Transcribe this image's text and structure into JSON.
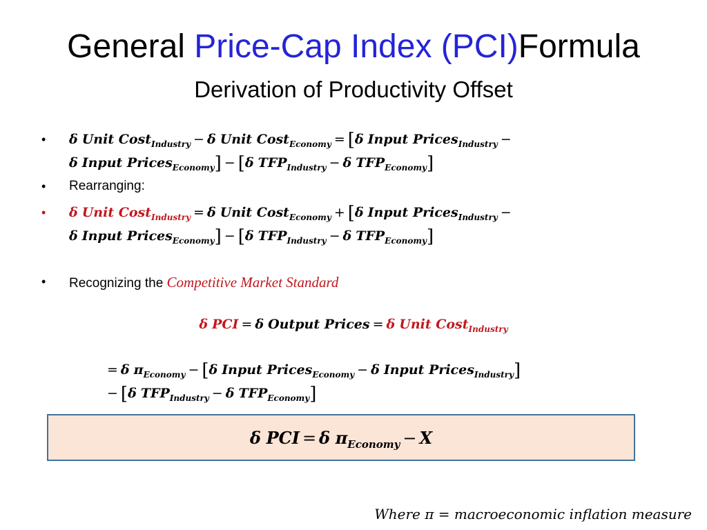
{
  "title": {
    "part1": "General ",
    "highlight": "Price-Cap Index (PCI)",
    "part2": "Formula"
  },
  "subtitle": "Derivation of Productivity Offset",
  "symbols": {
    "bullet": "•",
    "delta": "δ",
    "pi": "π",
    "minus": "−",
    "plus": "+",
    "equals": "=",
    "lbracket": "[",
    "rbracket": "]"
  },
  "terms": {
    "unit_cost": "Unit Cost",
    "input_prices": "Input Prices",
    "tfp": "TFP",
    "pci": "PCI",
    "output_prices": "Output Prices",
    "x": "X"
  },
  "subscripts": {
    "industry": "Industry",
    "economy": "Economy"
  },
  "bullets": {
    "rearranging": "Rearranging:",
    "recognizing": "Recognizing the ",
    "cms": "Competitive Market Standard"
  },
  "footer": {
    "where": "Where ",
    "pi": "π",
    "equals": "=",
    "text": "macroeconomic inflation measure"
  },
  "colors": {
    "title_highlight": "#2424d8",
    "red": "#c0181e",
    "box_fill": "#fbe5d6",
    "box_border": "#41719c"
  }
}
